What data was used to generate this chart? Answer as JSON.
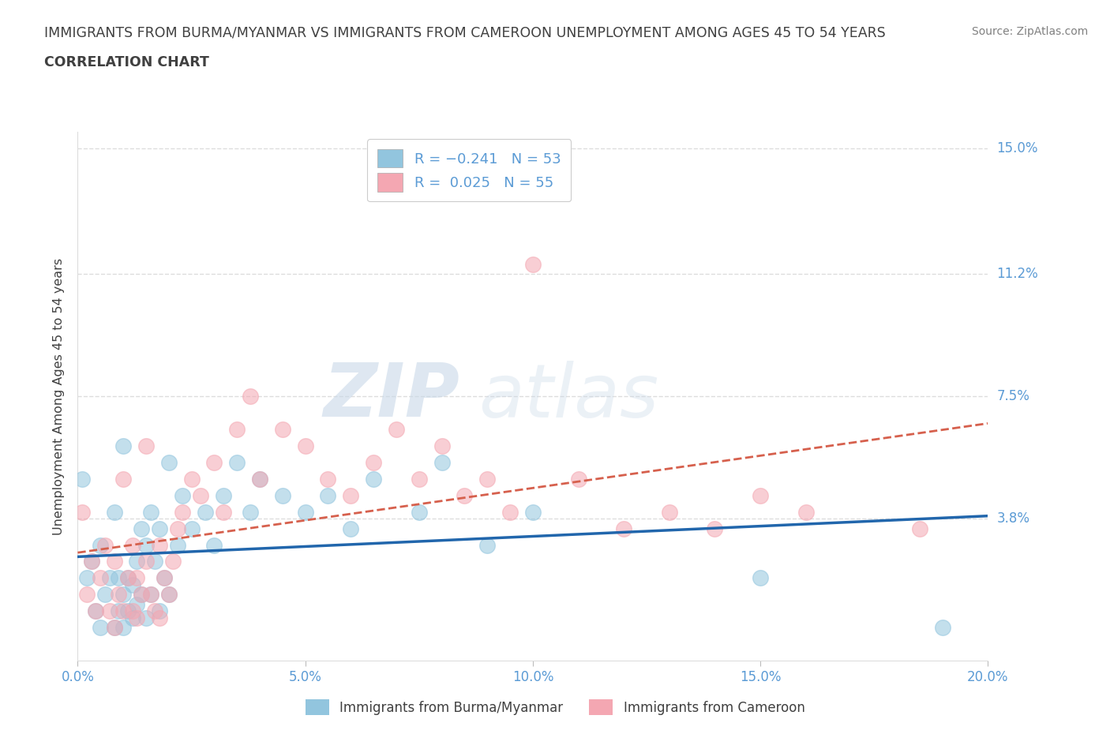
{
  "title_line1": "IMMIGRANTS FROM BURMA/MYANMAR VS IMMIGRANTS FROM CAMEROON UNEMPLOYMENT AMONG AGES 45 TO 54 YEARS",
  "title_line2": "CORRELATION CHART",
  "source": "Source: ZipAtlas.com",
  "ylabel": "Unemployment Among Ages 45 to 54 years",
  "xlim": [
    0.0,
    0.2
  ],
  "ylim": [
    -0.005,
    0.155
  ],
  "yticks": [
    0.038,
    0.075,
    0.112,
    0.15
  ],
  "ytick_labels": [
    "3.8%",
    "7.5%",
    "11.2%",
    "15.0%"
  ],
  "xticks": [
    0.0,
    0.05,
    0.1,
    0.15,
    0.2
  ],
  "xtick_labels": [
    "0.0%",
    "5.0%",
    "10.0%",
    "15.0%",
    "20.0%"
  ],
  "watermark_zip": "ZIP",
  "watermark_atlas": "atlas",
  "series1_color": "#92c5de",
  "series2_color": "#f4a7b2",
  "series1_label": "Immigrants from Burma/Myanmar",
  "series2_label": "Immigrants from Cameroon",
  "legend_R1": "R = −0.241",
  "legend_N1": "N = 53",
  "legend_R2": "R =  0.025",
  "legend_N2": "N = 55",
  "trend1_color": "#2166ac",
  "trend2_color": "#d6604d",
  "title_color": "#404040",
  "axis_label_color": "#5b9bd5",
  "source_color": "#808080",
  "legend_text_color": "#5b9bd5",
  "series1_x": [
    0.001,
    0.002,
    0.003,
    0.004,
    0.005,
    0.005,
    0.006,
    0.007,
    0.008,
    0.008,
    0.009,
    0.009,
    0.01,
    0.01,
    0.01,
    0.011,
    0.011,
    0.012,
    0.012,
    0.013,
    0.013,
    0.014,
    0.014,
    0.015,
    0.015,
    0.016,
    0.016,
    0.017,
    0.018,
    0.018,
    0.019,
    0.02,
    0.02,
    0.022,
    0.023,
    0.025,
    0.028,
    0.03,
    0.032,
    0.035,
    0.038,
    0.04,
    0.045,
    0.05,
    0.055,
    0.06,
    0.065,
    0.075,
    0.08,
    0.09,
    0.1,
    0.15,
    0.19
  ],
  "series1_y": [
    0.05,
    0.02,
    0.025,
    0.01,
    0.005,
    0.03,
    0.015,
    0.02,
    0.005,
    0.04,
    0.01,
    0.02,
    0.005,
    0.015,
    0.06,
    0.01,
    0.02,
    0.008,
    0.018,
    0.012,
    0.025,
    0.015,
    0.035,
    0.008,
    0.03,
    0.015,
    0.04,
    0.025,
    0.01,
    0.035,
    0.02,
    0.015,
    0.055,
    0.03,
    0.045,
    0.035,
    0.04,
    0.03,
    0.045,
    0.055,
    0.04,
    0.05,
    0.045,
    0.04,
    0.045,
    0.035,
    0.05,
    0.04,
    0.055,
    0.03,
    0.04,
    0.02,
    0.005
  ],
  "series2_x": [
    0.001,
    0.002,
    0.003,
    0.004,
    0.005,
    0.006,
    0.007,
    0.008,
    0.008,
    0.009,
    0.01,
    0.01,
    0.011,
    0.012,
    0.012,
    0.013,
    0.013,
    0.014,
    0.015,
    0.015,
    0.016,
    0.017,
    0.018,
    0.018,
    0.019,
    0.02,
    0.021,
    0.022,
    0.023,
    0.025,
    0.027,
    0.03,
    0.032,
    0.035,
    0.038,
    0.04,
    0.045,
    0.05,
    0.055,
    0.06,
    0.065,
    0.07,
    0.075,
    0.08,
    0.085,
    0.09,
    0.095,
    0.1,
    0.11,
    0.12,
    0.13,
    0.14,
    0.15,
    0.16,
    0.185
  ],
  "series2_y": [
    0.04,
    0.015,
    0.025,
    0.01,
    0.02,
    0.03,
    0.01,
    0.005,
    0.025,
    0.015,
    0.01,
    0.05,
    0.02,
    0.01,
    0.03,
    0.008,
    0.02,
    0.015,
    0.025,
    0.06,
    0.015,
    0.01,
    0.008,
    0.03,
    0.02,
    0.015,
    0.025,
    0.035,
    0.04,
    0.05,
    0.045,
    0.055,
    0.04,
    0.065,
    0.075,
    0.05,
    0.065,
    0.06,
    0.05,
    0.045,
    0.055,
    0.065,
    0.05,
    0.06,
    0.045,
    0.05,
    0.04,
    0.115,
    0.05,
    0.035,
    0.04,
    0.035,
    0.045,
    0.04,
    0.035
  ],
  "grid_color": "#dddddd",
  "background_color": "#ffffff"
}
